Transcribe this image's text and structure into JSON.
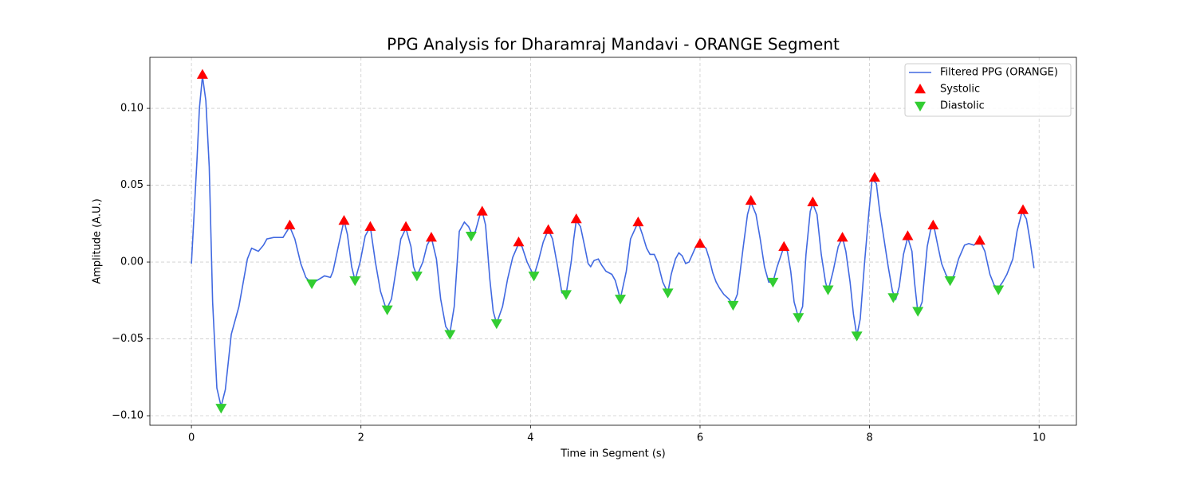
{
  "chart_data": {
    "type": "line",
    "title": "PPG Analysis for Dharamraj Mandavi - ORANGE Segment",
    "xlabel": "Time in Segment (s)",
    "ylabel": "Amplitude (A.U.)",
    "xlim": [
      -0.49,
      10.44
    ],
    "ylim": [
      -0.1062,
      0.1332
    ],
    "xticks": [
      0,
      2,
      4,
      6,
      8,
      10
    ],
    "yticks": [
      {
        "value": -0.1,
        "label": "−0.10"
      },
      {
        "value": -0.05,
        "label": "−0.05"
      },
      {
        "value": 0,
        "label": "0.00"
      },
      {
        "value": 0.05,
        "label": "0.05"
      },
      {
        "value": 0.1,
        "label": "0.10"
      }
    ],
    "grid": true,
    "legend": "upper right",
    "series": [
      {
        "name": "Filtered PPG (ORANGE)",
        "color": "#4169e1",
        "kind": "line",
        "x": [
          0,
          0.066,
          0.094,
          0.13,
          0.17,
          0.21,
          0.25,
          0.3,
          0.35,
          0.4,
          0.47,
          0.56,
          0.66,
          0.71,
          0.75,
          0.79,
          0.85,
          0.89,
          0.97,
          1.08,
          1.16,
          1.22,
          1.29,
          1.35,
          1.42,
          1.51,
          1.57,
          1.64,
          1.67,
          1.74,
          1.8,
          1.84,
          1.89,
          1.93,
          1.99,
          2.05,
          2.11,
          2.17,
          2.23,
          2.3,
          2.36,
          2.42,
          2.47,
          2.53,
          2.59,
          2.62,
          2.66,
          2.73,
          2.78,
          2.83,
          2.89,
          2.94,
          3.0,
          3.05,
          3.1,
          3.16,
          3.22,
          3.27,
          3.31,
          3.35,
          3.4,
          3.43,
          3.47,
          3.52,
          3.56,
          3.6,
          3.67,
          3.73,
          3.79,
          3.86,
          3.9,
          3.96,
          4.04,
          4.09,
          4.15,
          4.21,
          4.26,
          4.32,
          4.37,
          4.42,
          4.48,
          4.51,
          4.54,
          4.59,
          4.64,
          4.68,
          4.71,
          4.75,
          4.8,
          4.84,
          4.89,
          4.96,
          5.0,
          5.06,
          5.13,
          5.18,
          5.27,
          5.32,
          5.37,
          5.41,
          5.46,
          5.5,
          5.56,
          5.62,
          5.66,
          5.71,
          5.75,
          5.79,
          5.83,
          5.87,
          5.91,
          5.95,
          6.0,
          6.07,
          6.11,
          6.15,
          6.19,
          6.23,
          6.28,
          6.34,
          6.39,
          6.44,
          6.51,
          6.56,
          6.6,
          6.66,
          6.71,
          6.76,
          6.81,
          6.86,
          6.91,
          6.99,
          7.03,
          7.07,
          7.11,
          7.16,
          7.21,
          7.25,
          7.3,
          7.33,
          7.38,
          7.43,
          7.48,
          7.51,
          7.57,
          7.63,
          7.68,
          7.72,
          7.77,
          7.81,
          7.85,
          7.89,
          7.94,
          7.99,
          8.03,
          8.08,
          8.12,
          8.17,
          8.22,
          8.27,
          8.31,
          8.35,
          8.4,
          8.45,
          8.5,
          8.53,
          8.57,
          8.62,
          8.68,
          8.72,
          8.76,
          8.8,
          8.85,
          8.9,
          8.95,
          9.0,
          9.05,
          9.12,
          9.17,
          9.23,
          9.3,
          9.36,
          9.42,
          9.47,
          9.52,
          9.57,
          9.62,
          9.69,
          9.74,
          9.8,
          9.85,
          9.89,
          9.94
        ],
        "values": [
          -0.001,
          0.067,
          0.1,
          0.121,
          0.105,
          0.062,
          -0.026,
          -0.082,
          -0.094,
          -0.083,
          -0.047,
          -0.029,
          0.002,
          0.009,
          0.008,
          0.007,
          0.011,
          0.015,
          0.016,
          0.016,
          0.023,
          0.015,
          -0.001,
          -0.01,
          -0.014,
          -0.011,
          -0.009,
          -0.01,
          -0.006,
          0.012,
          0.027,
          0.018,
          -0.003,
          -0.012,
          0.0,
          0.017,
          0.023,
          0.0,
          -0.019,
          -0.031,
          -0.024,
          -0.003,
          0.015,
          0.022,
          0.01,
          -0.003,
          -0.009,
          0.0,
          0.011,
          0.016,
          0.002,
          -0.024,
          -0.042,
          -0.046,
          -0.029,
          0.02,
          0.026,
          0.023,
          0.018,
          0.02,
          0.03,
          0.033,
          0.024,
          -0.011,
          -0.032,
          -0.04,
          -0.029,
          -0.011,
          0.003,
          0.012,
          0.01,
          0.0,
          -0.009,
          0.0,
          0.013,
          0.021,
          0.015,
          -0.003,
          -0.02,
          -0.021,
          0.0,
          0.015,
          0.027,
          0.023,
          0.01,
          -0.001,
          -0.003,
          0.001,
          0.002,
          -0.002,
          -0.006,
          -0.008,
          -0.012,
          -0.024,
          -0.006,
          0.015,
          0.026,
          0.018,
          0.009,
          0.005,
          0.005,
          0.0,
          -0.013,
          -0.02,
          -0.008,
          0.002,
          0.006,
          0.004,
          -0.001,
          0.0,
          0.005,
          0.01,
          0.012,
          0.009,
          0.002,
          -0.007,
          -0.013,
          -0.017,
          -0.021,
          -0.024,
          -0.028,
          -0.021,
          0.01,
          0.031,
          0.039,
          0.031,
          0.015,
          -0.003,
          -0.013,
          -0.013,
          -0.003,
          0.01,
          0.007,
          -0.006,
          -0.026,
          -0.036,
          -0.029,
          0.005,
          0.033,
          0.038,
          0.031,
          0.005,
          -0.013,
          -0.019,
          -0.006,
          0.01,
          0.016,
          0.007,
          -0.013,
          -0.034,
          -0.048,
          -0.037,
          -0.001,
          0.031,
          0.054,
          0.051,
          0.033,
          0.015,
          -0.003,
          -0.019,
          -0.024,
          -0.016,
          0.005,
          0.016,
          0.007,
          -0.013,
          -0.033,
          -0.026,
          0.01,
          0.021,
          0.023,
          0.012,
          -0.001,
          -0.008,
          -0.013,
          -0.008,
          0.002,
          0.011,
          0.012,
          0.011,
          0.014,
          0.007,
          -0.008,
          -0.015,
          -0.017,
          -0.013,
          -0.008,
          0.002,
          0.02,
          0.033,
          0.028,
          0.015,
          -0.004
        ]
      },
      {
        "name": "Systolic",
        "color": "#ff0000",
        "kind": "marker-up",
        "x": [
          0.13,
          1.16,
          1.8,
          2.11,
          2.53,
          2.83,
          3.43,
          3.86,
          4.21,
          4.54,
          5.27,
          6.0,
          6.6,
          6.99,
          7.33,
          7.68,
          8.06,
          8.45,
          8.75,
          9.3,
          9.81
        ],
        "values": [
          0.122,
          0.024,
          0.027,
          0.023,
          0.023,
          0.016,
          0.033,
          0.013,
          0.021,
          0.028,
          0.026,
          0.012,
          0.04,
          0.01,
          0.039,
          0.016,
          0.055,
          0.017,
          0.024,
          0.014,
          0.034
        ]
      },
      {
        "name": "Diastolic",
        "color": "#32cd32",
        "kind": "marker-down",
        "x": [
          0.35,
          1.42,
          1.93,
          2.31,
          2.66,
          3.05,
          3.3,
          3.6,
          4.04,
          4.42,
          5.06,
          5.62,
          6.39,
          6.86,
          7.16,
          7.51,
          7.85,
          8.28,
          8.57,
          8.95,
          9.52
        ],
        "values": [
          -0.095,
          -0.014,
          -0.012,
          -0.031,
          -0.009,
          -0.047,
          0.017,
          -0.04,
          -0.009,
          -0.021,
          -0.024,
          -0.02,
          -0.028,
          -0.013,
          -0.036,
          -0.018,
          -0.048,
          -0.023,
          -0.032,
          -0.012,
          -0.018
        ]
      }
    ]
  }
}
